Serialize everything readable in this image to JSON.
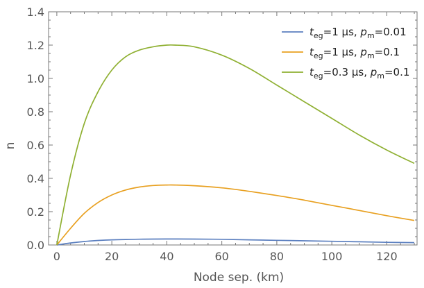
{
  "chart_data": {
    "type": "line",
    "title": "",
    "xlabel": "Node sep. (km)",
    "ylabel": "n",
    "xlim": [
      -3,
      131
    ],
    "ylim": [
      0,
      1.4
    ],
    "x_ticks": [
      0,
      20,
      40,
      60,
      80,
      100,
      120
    ],
    "y_ticks": [
      0.0,
      0.2,
      0.4,
      0.6,
      0.8,
      1.0,
      1.2,
      1.4
    ],
    "x_tick_labels": [
      "0",
      "20",
      "40",
      "60",
      "80",
      "100",
      "120"
    ],
    "y_tick_labels": [
      "0.0",
      "0.2",
      "0.4",
      "0.6",
      "0.8",
      "1.0",
      "1.2",
      "1.4"
    ],
    "grid": false,
    "legend_position": "top-right",
    "series": [
      {
        "name": "t_eg=1 μs, p_m=0.01",
        "legend": {
          "var1": "t",
          "sub1": "eg",
          "mid": "=1 μs, ",
          "var2": "p",
          "sub2": "m",
          "tail": "=0.01"
        },
        "color": "#5b7fbf",
        "x": [
          0,
          5,
          10,
          15,
          20,
          25,
          30,
          35,
          40,
          43,
          50,
          60,
          70,
          80,
          90,
          100,
          110,
          120,
          130
        ],
        "y": [
          0,
          0.012,
          0.021,
          0.027,
          0.031,
          0.033,
          0.0345,
          0.0355,
          0.036,
          0.036,
          0.0355,
          0.034,
          0.031,
          0.028,
          0.025,
          0.022,
          0.019,
          0.016,
          0.014
        ]
      },
      {
        "name": "t_eg=1 μs, p_m=0.1",
        "legend": {
          "var1": "t",
          "sub1": "eg",
          "mid": "=1 μs, ",
          "var2": "p",
          "sub2": "m",
          "tail": "=0.1"
        },
        "color": "#e8a020",
        "x": [
          0,
          5,
          10,
          15,
          20,
          25,
          30,
          35,
          40,
          43,
          50,
          60,
          70,
          80,
          90,
          100,
          110,
          120,
          130
        ],
        "y": [
          0,
          0.1,
          0.19,
          0.255,
          0.3,
          0.33,
          0.348,
          0.357,
          0.36,
          0.36,
          0.356,
          0.343,
          0.322,
          0.297,
          0.269,
          0.238,
          0.207,
          0.176,
          0.147
        ]
      },
      {
        "name": "t_eg=0.3 μs, p_m=0.1",
        "legend": {
          "var1": "t",
          "sub1": "eg",
          "mid": "=0.3 μs, ",
          "var2": "p",
          "sub2": "m",
          "tail": "=0.1"
        },
        "color": "#8fb032",
        "x": [
          0,
          5,
          10,
          15,
          20,
          25,
          30,
          35,
          40,
          43,
          50,
          60,
          70,
          80,
          90,
          100,
          110,
          120,
          130
        ],
        "y": [
          0,
          0.42,
          0.73,
          0.92,
          1.05,
          1.13,
          1.17,
          1.19,
          1.2,
          1.2,
          1.19,
          1.14,
          1.06,
          0.96,
          0.86,
          0.76,
          0.66,
          0.57,
          0.49
        ]
      }
    ]
  }
}
